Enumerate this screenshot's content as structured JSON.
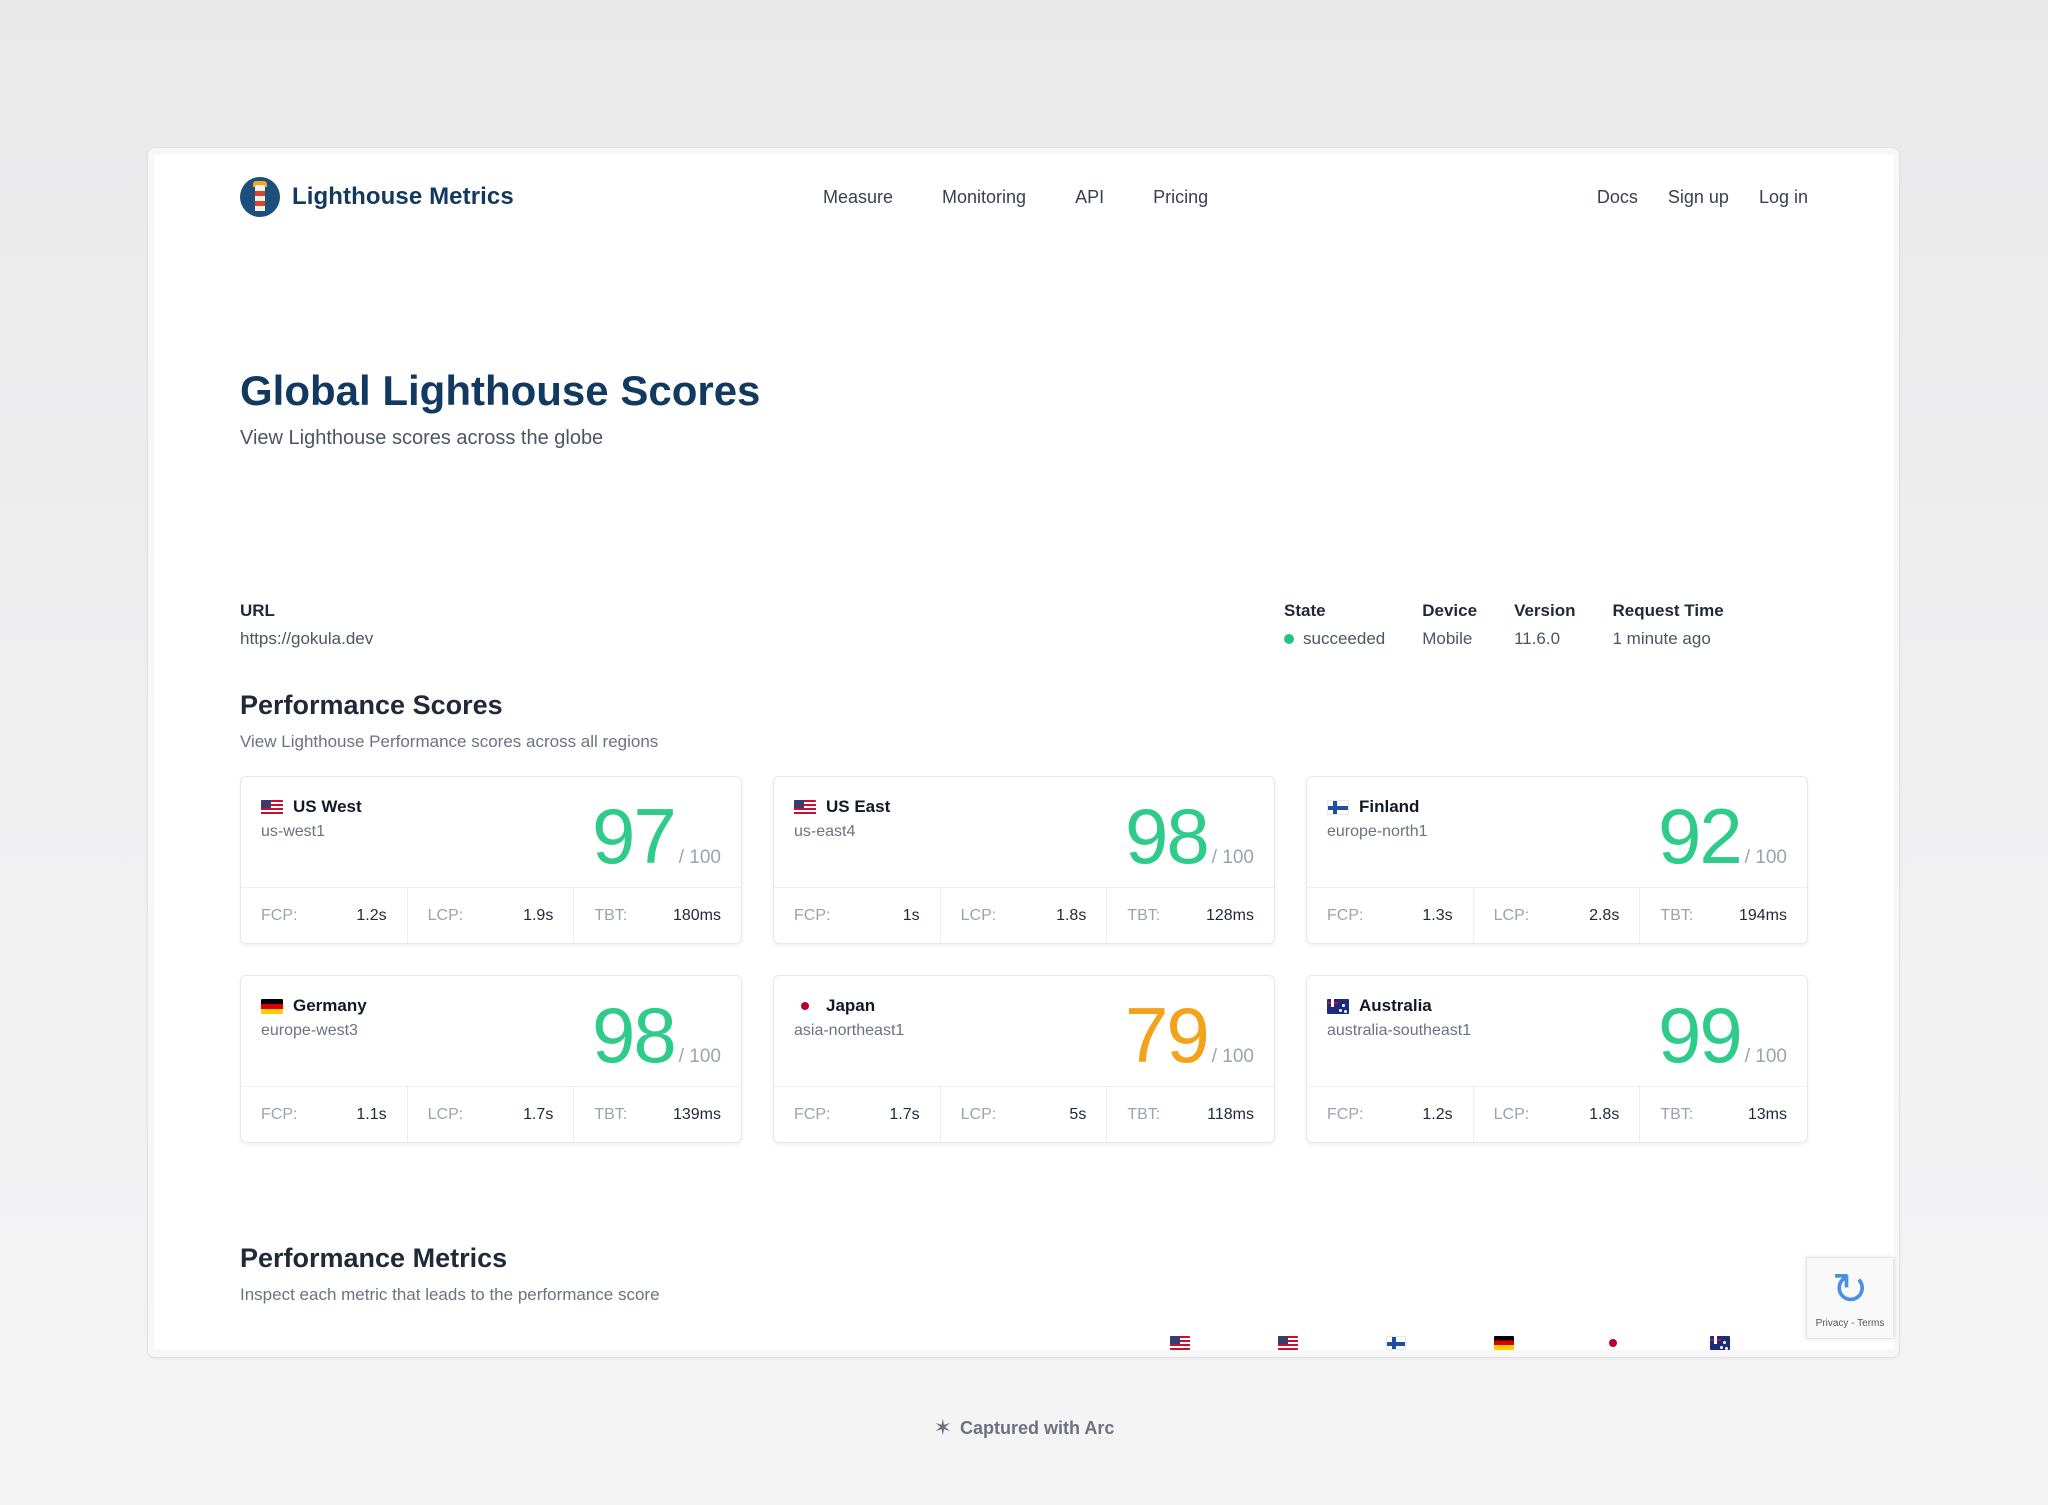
{
  "nav": {
    "brand": "Lighthouse Metrics",
    "menu": [
      "Measure",
      "Monitoring",
      "API",
      "Pricing"
    ],
    "right": [
      "Docs",
      "Sign up",
      "Log in"
    ]
  },
  "hero": {
    "title": "Global Lighthouse Scores",
    "subtitle": "View Lighthouse scores across the globe"
  },
  "meta": {
    "url_label": "URL",
    "url_value": "https://gokula.dev",
    "state_label": "State",
    "state_value": "succeeded",
    "device_label": "Device",
    "device_value": "Mobile",
    "version_label": "Version",
    "version_value": "11.6.0",
    "request_label": "Request Time",
    "request_value": "1 minute ago"
  },
  "scores_section": {
    "title": "Performance Scores",
    "subtitle": "View Lighthouse Performance scores across all regions"
  },
  "metrics_section": {
    "title": "Performance Metrics",
    "subtitle": "Inspect each metric that leads to the performance score"
  },
  "colors": {
    "good": "#2fcb8a",
    "average": "#f5a21b",
    "brand": "#12395f"
  },
  "regions": [
    {
      "flag": "us-flag-icon",
      "name": "US West",
      "code": "us-west1",
      "score": "97",
      "out_of": "/ 100",
      "rating": "good",
      "fcp_label": "FCP:",
      "fcp": "1.2s",
      "lcp_label": "LCP:",
      "lcp": "1.9s",
      "tbt_label": "TBT:",
      "tbt": "180ms"
    },
    {
      "flag": "us-flag-icon",
      "name": "US East",
      "code": "us-east4",
      "score": "98",
      "out_of": "/ 100",
      "rating": "good",
      "fcp_label": "FCP:",
      "fcp": "1s",
      "lcp_label": "LCP:",
      "lcp": "1.8s",
      "tbt_label": "TBT:",
      "tbt": "128ms"
    },
    {
      "flag": "finland-flag-icon",
      "name": "Finland",
      "code": "europe-north1",
      "score": "92",
      "out_of": "/ 100",
      "rating": "good",
      "fcp_label": "FCP:",
      "fcp": "1.3s",
      "lcp_label": "LCP:",
      "lcp": "2.8s",
      "tbt_label": "TBT:",
      "tbt": "194ms"
    },
    {
      "flag": "germany-flag-icon",
      "name": "Germany",
      "code": "europe-west3",
      "score": "98",
      "out_of": "/ 100",
      "rating": "good",
      "fcp_label": "FCP:",
      "fcp": "1.1s",
      "lcp_label": "LCP:",
      "lcp": "1.7s",
      "tbt_label": "TBT:",
      "tbt": "139ms"
    },
    {
      "flag": "japan-flag-icon",
      "name": "Japan",
      "code": "asia-northeast1",
      "score": "79",
      "out_of": "/ 100",
      "rating": "average",
      "fcp_label": "FCP:",
      "fcp": "1.7s",
      "lcp_label": "LCP:",
      "lcp": "5s",
      "tbt_label": "TBT:",
      "tbt": "118ms"
    },
    {
      "flag": "australia-flag-icon",
      "name": "Australia",
      "code": "australia-southeast1",
      "score": "99",
      "out_of": "/ 100",
      "rating": "good",
      "fcp_label": "FCP:",
      "fcp": "1.2s",
      "lcp_label": "LCP:",
      "lcp": "1.8s",
      "tbt_label": "TBT:",
      "tbt": "13ms"
    }
  ],
  "recaptcha": {
    "icon": "recaptcha-icon",
    "text": "Privacy - Terms"
  },
  "footer": {
    "icon": "arc-icon",
    "text": "Captured with Arc"
  }
}
